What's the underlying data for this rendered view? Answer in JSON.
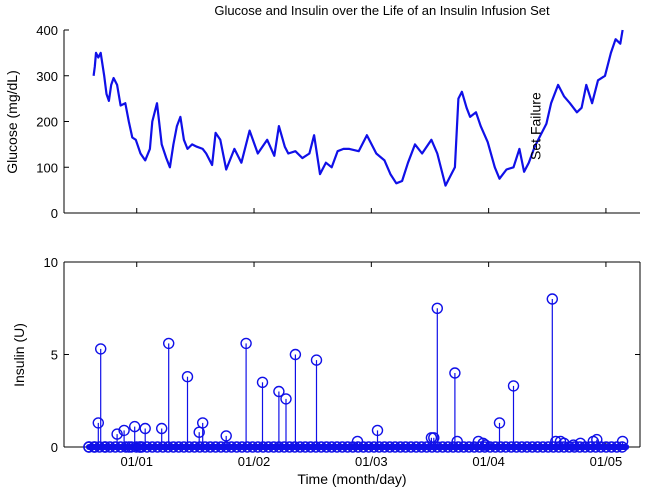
{
  "chart_data": [
    {
      "type": "line",
      "title": "Glucose and Insulin over the Life of an Insulin Infusion Set",
      "ylabel": "Glucose (mg/dL)",
      "xlabel": "",
      "ylim": [
        0,
        400
      ],
      "yticks": [
        "0",
        "100",
        "200",
        "300",
        "400"
      ],
      "xlim_days": [
        0,
        4.6
      ],
      "date_ticks": [
        {
          "day": 0.1,
          "label": "01/01"
        },
        {
          "day": 1.1,
          "label": "01/02"
        },
        {
          "day": 2.1,
          "label": "01/03"
        },
        {
          "day": 3.1,
          "label": "01/04"
        },
        {
          "day": 4.1,
          "label": "01/05"
        }
      ],
      "annotation": {
        "text": "Set Failure",
        "day": 3.73,
        "value": 190
      },
      "series": [
        {
          "color": "#1010e8",
          "x": [
            -0.08,
            -0.07,
            -0.06,
            -0.04,
            -0.02,
            0.01,
            0.03,
            0.05,
            0.07,
            0.09,
            0.12,
            0.15,
            0.19,
            0.22,
            0.25,
            0.28,
            0.32,
            0.36,
            0.4,
            0.42,
            0.46,
            0.5,
            0.54,
            0.57,
            0.6,
            0.63,
            0.66,
            0.69,
            0.72,
            0.76,
            0.8,
            0.85,
            0.88,
            0.93,
            0.96,
            1.0,
            1.05,
            1.12,
            1.18,
            1.25,
            1.32,
            1.4,
            1.46,
            1.5,
            1.55,
            1.58,
            1.64,
            1.7,
            1.76,
            1.8,
            1.85,
            1.9,
            1.95,
            2.0,
            2.05,
            2.1,
            2.18,
            2.25,
            2.33,
            2.4,
            2.45,
            2.5,
            2.55,
            2.6,
            2.66,
            2.72,
            2.8,
            2.85,
            2.92,
            2.96,
            3.0,
            3.03,
            3.06,
            3.1,
            3.13,
            3.18,
            3.22,
            3.28,
            3.34,
            3.38,
            3.44,
            3.5,
            3.55,
            3.59,
            3.63,
            3.68,
            3.73,
            3.78,
            3.82,
            3.88,
            3.93,
            3.98,
            4.04,
            4.08,
            4.12,
            4.17,
            4.22,
            4.28,
            4.33,
            4.37,
            4.41,
            4.43
          ],
          "y": [
            300,
            320,
            350,
            340,
            350,
            300,
            260,
            245,
            280,
            295,
            280,
            235,
            240,
            200,
            165,
            160,
            130,
            115,
            140,
            200,
            240,
            150,
            120,
            100,
            150,
            190,
            210,
            160,
            140,
            150,
            145,
            140,
            130,
            105,
            175,
            160,
            95,
            140,
            110,
            180,
            130,
            160,
            125,
            190,
            145,
            130,
            135,
            120,
            130,
            170,
            85,
            110,
            100,
            135,
            140,
            140,
            135,
            170,
            130,
            115,
            85,
            65,
            70,
            110,
            150,
            130,
            160,
            130,
            60,
            80,
            100,
            250,
            265,
            230,
            210,
            220,
            190,
            155,
            100,
            75,
            95,
            100,
            140,
            90,
            110,
            145,
            170,
            195,
            240,
            280,
            255,
            240,
            220,
            230,
            280,
            240,
            290,
            300,
            350,
            380,
            370,
            400
          ]
        }
      ]
    },
    {
      "type": "stem",
      "title": "",
      "ylabel": "Insulin (U)",
      "xlabel": "Time (month/day)",
      "ylim": [
        0,
        10
      ],
      "yticks": [
        "0",
        "5",
        "10"
      ],
      "xlim_days": [
        0,
        4.6
      ],
      "date_ticks": [
        {
          "day": 0.1,
          "label": "01/01"
        },
        {
          "day": 1.1,
          "label": "01/02"
        },
        {
          "day": 2.1,
          "label": "01/03"
        },
        {
          "day": 3.1,
          "label": "01/04"
        },
        {
          "day": 4.1,
          "label": "01/05"
        }
      ],
      "baseline_range": [
        -0.12,
        4.46
      ],
      "series": [
        {
          "color": "#1010e8",
          "x": [
            -0.12,
            -0.07,
            -0.04,
            -0.02,
            0.02,
            0.12,
            0.18,
            0.22,
            0.27,
            0.31,
            0.32,
            0.36,
            0.5,
            0.56,
            0.72,
            0.82,
            0.85,
            1.05,
            1.22,
            1.36,
            1.5,
            1.56,
            1.64,
            1.82,
            2.17,
            2.34,
            2.8,
            2.82,
            2.85,
            3.0,
            3.02,
            3.2,
            3.24,
            3.26,
            3.38,
            3.5,
            3.83,
            3.86,
            3.9,
            3.93,
            4.01,
            4.07,
            4.18,
            4.21,
            4.43
          ],
          "y": [
            0,
            0,
            1.3,
            5.3,
            0,
            0.7,
            0.9,
            0,
            1.1,
            0,
            0,
            1.0,
            1.0,
            5.6,
            3.8,
            0.8,
            1.3,
            0.6,
            5.6,
            3.5,
            3.0,
            2.6,
            5.0,
            4.7,
            0.3,
            0.9,
            0.5,
            0.5,
            7.5,
            4.0,
            0.3,
            0.3,
            0.2,
            0.1,
            1.3,
            3.3,
            8.0,
            0.3,
            0.3,
            0.2,
            0.1,
            0.2,
            0.3,
            0.4,
            0.3
          ]
        }
      ]
    }
  ]
}
